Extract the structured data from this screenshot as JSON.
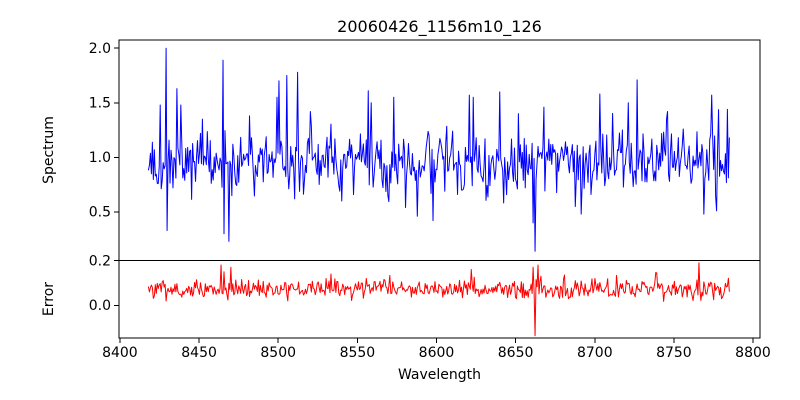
{
  "chart_data": {
    "type": "line",
    "title": "20060426_1156m10_126",
    "xlabel": "Wavelength",
    "grid": false,
    "legend": null,
    "x_range": [
      8399.4,
      8804.4
    ],
    "x_ticks": [
      8400,
      8450,
      8500,
      8550,
      8600,
      8650,
      8700,
      8750,
      8800
    ],
    "x_tick_labels": [
      "8400",
      "8450",
      "8500",
      "8550",
      "8600",
      "8650",
      "8700",
      "8750",
      "8800"
    ],
    "panels": [
      {
        "name": "spectrum",
        "ylabel": "Spectrum",
        "ylim": [
          0.055,
          2.075
        ],
        "y_ticks": [
          0.5,
          1.0,
          1.5,
          2.0
        ],
        "y_tick_labels": [
          "0.5",
          "1.0",
          "1.5",
          "2.0"
        ],
        "series": {
          "name": "spectrum-flux",
          "color": "#0000ff",
          "x_start": 8418,
          "x_end": 8785,
          "x_step": 0.62,
          "baseline": 0.97,
          "noise_sigma": 0.27,
          "tail_prob": 0.08,
          "tail_boost": 1.9,
          "clamp": [
            0.48,
            1.48
          ],
          "seed": 1337,
          "features": [
            [
              8429.0,
              2.0
            ],
            [
              8429.6,
              0.33
            ],
            [
              8436.0,
              1.63
            ],
            [
              8438.5,
              1.48
            ],
            [
              8452.0,
              1.35
            ],
            [
              8465.0,
              1.89
            ],
            [
              8465.6,
              0.3
            ],
            [
              8469.0,
              0.23
            ],
            [
              8482.0,
              1.38
            ],
            [
              8499.5,
              1.55
            ],
            [
              8500.5,
              1.7
            ],
            [
              8505.5,
              1.75
            ],
            [
              8510.5,
              0.62
            ],
            [
              8512.5,
              1.78
            ],
            [
              8520.0,
              1.42
            ],
            [
              8540.0,
              0.6
            ],
            [
              8557.0,
              1.61
            ],
            [
              8559.0,
              1.5
            ],
            [
              8573.0,
              1.55
            ],
            [
              8588.0,
              0.46
            ],
            [
              8598.0,
              0.42
            ],
            [
              8621.0,
              1.57
            ],
            [
              8623.0,
              1.55
            ],
            [
              8640.0,
              1.6
            ],
            [
              8652.0,
              1.4
            ],
            [
              8661.0,
              0.4
            ],
            [
              8662.3,
              0.14
            ],
            [
              8664.0,
              1.1
            ],
            [
              8668.0,
              1.46
            ],
            [
              8688.0,
              0.55
            ],
            [
              8703.0,
              1.58
            ],
            [
              8721.0,
              1.5
            ],
            [
              8727.0,
              1.71
            ],
            [
              8746.0,
              1.42
            ],
            [
              8774.0,
              1.57
            ],
            [
              8777.0,
              0.51
            ],
            [
              8784.0,
              1.44
            ]
          ]
        }
      },
      {
        "name": "error",
        "ylabel": "Error",
        "ylim": [
          -0.145,
          0.2
        ],
        "y_ticks": [
          0.0,
          0.2
        ],
        "y_tick_labels": [
          "0.0",
          "0.2"
        ],
        "series": {
          "name": "error-flux",
          "color": "#ff0000",
          "x_start": 8418,
          "x_end": 8785,
          "x_step": 0.62,
          "baseline": 0.072,
          "noise_sigma": 0.042,
          "tail_prob": 0.07,
          "tail_boost": 1.8,
          "clamp": [
            0.018,
            0.155
          ],
          "seed": 4242,
          "features": [
            [
              8429.0,
              0.02
            ],
            [
              8464.0,
              0.18
            ],
            [
              8466.0,
              0.15
            ],
            [
              8470.0,
              0.17
            ],
            [
              8530.0,
              0.12
            ],
            [
              8622.0,
              0.16
            ],
            [
              8661.0,
              0.17
            ],
            [
              8662.3,
              -0.135
            ],
            [
              8664.0,
              0.18
            ],
            [
              8666.0,
              0.13
            ],
            [
              8700.0,
              0.12
            ],
            [
              8766.0,
              0.19
            ],
            [
              8772.0,
              0.1
            ],
            [
              8780.0,
              0.03
            ]
          ]
        }
      }
    ]
  }
}
